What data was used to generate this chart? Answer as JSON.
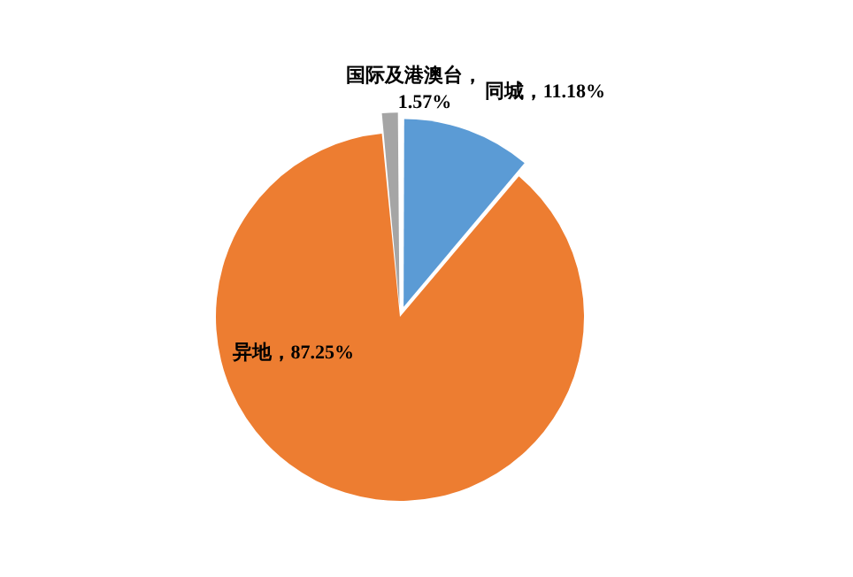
{
  "chart_data": {
    "type": "pie",
    "categories": [
      "同城",
      "异地",
      "国际及港澳台"
    ],
    "values": [
      11.18,
      87.25,
      1.57
    ],
    "colors": [
      "#5b9bd5",
      "#ed7d31",
      "#a5a5a5"
    ],
    "value_labels": [
      "，11.18%",
      "，87.25%",
      "，1.57%"
    ],
    "legend": false
  }
}
